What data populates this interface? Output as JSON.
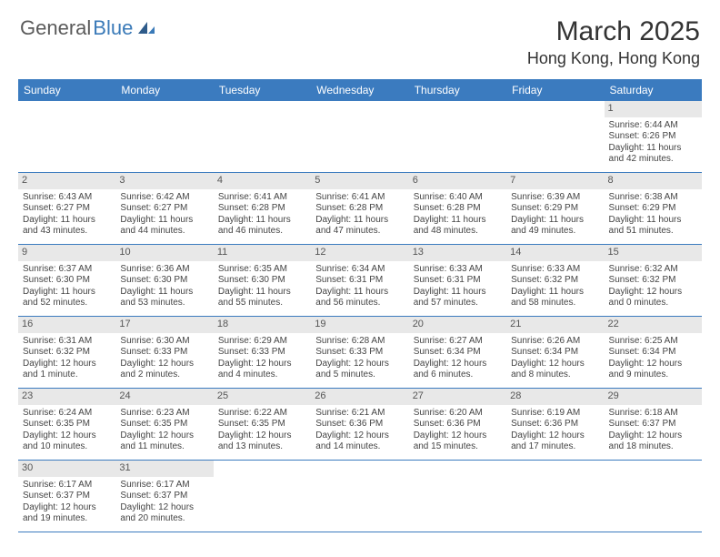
{
  "logo": {
    "general": "General",
    "blue": "Blue"
  },
  "title": "March 2025",
  "location": "Hong Kong, Hong Kong",
  "colors": {
    "header_bg": "#3b7bbf",
    "header_text": "#ffffff",
    "daynum_bg": "#e8e8e8",
    "text": "#444444",
    "logo_gray": "#5a5a5a",
    "logo_blue": "#3a7ab8"
  },
  "day_names": [
    "Sunday",
    "Monday",
    "Tuesday",
    "Wednesday",
    "Thursday",
    "Friday",
    "Saturday"
  ],
  "weeks": [
    [
      null,
      null,
      null,
      null,
      null,
      null,
      {
        "n": "1",
        "sr": "Sunrise: 6:44 AM",
        "ss": "Sunset: 6:26 PM",
        "dl": "Daylight: 11 hours and 42 minutes."
      }
    ],
    [
      {
        "n": "2",
        "sr": "Sunrise: 6:43 AM",
        "ss": "Sunset: 6:27 PM",
        "dl": "Daylight: 11 hours and 43 minutes."
      },
      {
        "n": "3",
        "sr": "Sunrise: 6:42 AM",
        "ss": "Sunset: 6:27 PM",
        "dl": "Daylight: 11 hours and 44 minutes."
      },
      {
        "n": "4",
        "sr": "Sunrise: 6:41 AM",
        "ss": "Sunset: 6:28 PM",
        "dl": "Daylight: 11 hours and 46 minutes."
      },
      {
        "n": "5",
        "sr": "Sunrise: 6:41 AM",
        "ss": "Sunset: 6:28 PM",
        "dl": "Daylight: 11 hours and 47 minutes."
      },
      {
        "n": "6",
        "sr": "Sunrise: 6:40 AM",
        "ss": "Sunset: 6:28 PM",
        "dl": "Daylight: 11 hours and 48 minutes."
      },
      {
        "n": "7",
        "sr": "Sunrise: 6:39 AM",
        "ss": "Sunset: 6:29 PM",
        "dl": "Daylight: 11 hours and 49 minutes."
      },
      {
        "n": "8",
        "sr": "Sunrise: 6:38 AM",
        "ss": "Sunset: 6:29 PM",
        "dl": "Daylight: 11 hours and 51 minutes."
      }
    ],
    [
      {
        "n": "9",
        "sr": "Sunrise: 6:37 AM",
        "ss": "Sunset: 6:30 PM",
        "dl": "Daylight: 11 hours and 52 minutes."
      },
      {
        "n": "10",
        "sr": "Sunrise: 6:36 AM",
        "ss": "Sunset: 6:30 PM",
        "dl": "Daylight: 11 hours and 53 minutes."
      },
      {
        "n": "11",
        "sr": "Sunrise: 6:35 AM",
        "ss": "Sunset: 6:30 PM",
        "dl": "Daylight: 11 hours and 55 minutes."
      },
      {
        "n": "12",
        "sr": "Sunrise: 6:34 AM",
        "ss": "Sunset: 6:31 PM",
        "dl": "Daylight: 11 hours and 56 minutes."
      },
      {
        "n": "13",
        "sr": "Sunrise: 6:33 AM",
        "ss": "Sunset: 6:31 PM",
        "dl": "Daylight: 11 hours and 57 minutes."
      },
      {
        "n": "14",
        "sr": "Sunrise: 6:33 AM",
        "ss": "Sunset: 6:32 PM",
        "dl": "Daylight: 11 hours and 58 minutes."
      },
      {
        "n": "15",
        "sr": "Sunrise: 6:32 AM",
        "ss": "Sunset: 6:32 PM",
        "dl": "Daylight: 12 hours and 0 minutes."
      }
    ],
    [
      {
        "n": "16",
        "sr": "Sunrise: 6:31 AM",
        "ss": "Sunset: 6:32 PM",
        "dl": "Daylight: 12 hours and 1 minute."
      },
      {
        "n": "17",
        "sr": "Sunrise: 6:30 AM",
        "ss": "Sunset: 6:33 PM",
        "dl": "Daylight: 12 hours and 2 minutes."
      },
      {
        "n": "18",
        "sr": "Sunrise: 6:29 AM",
        "ss": "Sunset: 6:33 PM",
        "dl": "Daylight: 12 hours and 4 minutes."
      },
      {
        "n": "19",
        "sr": "Sunrise: 6:28 AM",
        "ss": "Sunset: 6:33 PM",
        "dl": "Daylight: 12 hours and 5 minutes."
      },
      {
        "n": "20",
        "sr": "Sunrise: 6:27 AM",
        "ss": "Sunset: 6:34 PM",
        "dl": "Daylight: 12 hours and 6 minutes."
      },
      {
        "n": "21",
        "sr": "Sunrise: 6:26 AM",
        "ss": "Sunset: 6:34 PM",
        "dl": "Daylight: 12 hours and 8 minutes."
      },
      {
        "n": "22",
        "sr": "Sunrise: 6:25 AM",
        "ss": "Sunset: 6:34 PM",
        "dl": "Daylight: 12 hours and 9 minutes."
      }
    ],
    [
      {
        "n": "23",
        "sr": "Sunrise: 6:24 AM",
        "ss": "Sunset: 6:35 PM",
        "dl": "Daylight: 12 hours and 10 minutes."
      },
      {
        "n": "24",
        "sr": "Sunrise: 6:23 AM",
        "ss": "Sunset: 6:35 PM",
        "dl": "Daylight: 12 hours and 11 minutes."
      },
      {
        "n": "25",
        "sr": "Sunrise: 6:22 AM",
        "ss": "Sunset: 6:35 PM",
        "dl": "Daylight: 12 hours and 13 minutes."
      },
      {
        "n": "26",
        "sr": "Sunrise: 6:21 AM",
        "ss": "Sunset: 6:36 PM",
        "dl": "Daylight: 12 hours and 14 minutes."
      },
      {
        "n": "27",
        "sr": "Sunrise: 6:20 AM",
        "ss": "Sunset: 6:36 PM",
        "dl": "Daylight: 12 hours and 15 minutes."
      },
      {
        "n": "28",
        "sr": "Sunrise: 6:19 AM",
        "ss": "Sunset: 6:36 PM",
        "dl": "Daylight: 12 hours and 17 minutes."
      },
      {
        "n": "29",
        "sr": "Sunrise: 6:18 AM",
        "ss": "Sunset: 6:37 PM",
        "dl": "Daylight: 12 hours and 18 minutes."
      }
    ],
    [
      {
        "n": "30",
        "sr": "Sunrise: 6:17 AM",
        "ss": "Sunset: 6:37 PM",
        "dl": "Daylight: 12 hours and 19 minutes."
      },
      {
        "n": "31",
        "sr": "Sunrise: 6:17 AM",
        "ss": "Sunset: 6:37 PM",
        "dl": "Daylight: 12 hours and 20 minutes."
      },
      null,
      null,
      null,
      null,
      null
    ]
  ]
}
